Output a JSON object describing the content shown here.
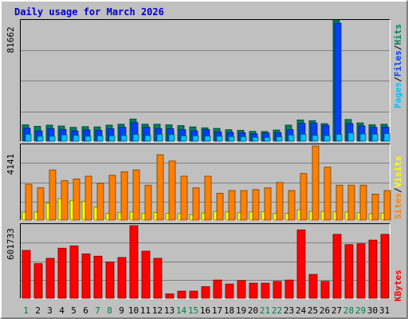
{
  "title": "Daily usage for March 2026",
  "colors": {
    "background": "#c0c0c0",
    "title": "#0000cc",
    "hits": "#00805c",
    "files": "#0040ff",
    "pages": "#00c0ff",
    "visits": "#ffff00",
    "sites": "#ff8000",
    "kbytes": "#ff0000",
    "day_weekday": "#000000",
    "day_weekend": "#008040"
  },
  "legends": {
    "top": [
      {
        "text": "Pages",
        "color": "#00c0ff"
      },
      {
        "text": "/",
        "color": "#000000"
      },
      {
        "text": "Files",
        "color": "#0040ff"
      },
      {
        "text": "/",
        "color": "#000000"
      },
      {
        "text": "Hits",
        "color": "#00805c"
      }
    ],
    "middle": [
      {
        "text": "Sites",
        "color": "#ff8000"
      },
      {
        "text": "/",
        "color": "#000000"
      },
      {
        "text": "Visits",
        "color": "#ffff00"
      }
    ],
    "bottom": [
      {
        "text": "KBytes",
        "color": "#ff0000"
      }
    ]
  },
  "chart_data": [
    {
      "type": "bar",
      "panel": "hits-files-pages",
      "ymax_label": "81662",
      "ylim": [
        0,
        81662
      ],
      "grid": true,
      "x": [
        1,
        2,
        3,
        4,
        5,
        6,
        7,
        8,
        9,
        10,
        11,
        12,
        13,
        14,
        15,
        16,
        17,
        18,
        19,
        20,
        21,
        22,
        23,
        24,
        25,
        26,
        27,
        28,
        29,
        30,
        31
      ],
      "series": [
        {
          "name": "Hits",
          "values": [
            11000,
            10000,
            10800,
            10200,
            9300,
            9800,
            9600,
            10800,
            11400,
            14900,
            11400,
            11400,
            11000,
            10500,
            9600,
            9000,
            8600,
            7700,
            7300,
            6600,
            6500,
            7500,
            10800,
            14300,
            13800,
            11800,
            81662,
            14600,
            12300,
            11100,
            11400
          ]
        },
        {
          "name": "Files",
          "values": [
            8700,
            6900,
            8400,
            7900,
            6900,
            7600,
            7300,
            8400,
            9400,
            12500,
            9400,
            8500,
            8400,
            7700,
            7000,
            7800,
            6300,
            5900,
            5700,
            5000,
            5500,
            5800,
            7800,
            12000,
            12100,
            10700,
            79500,
            11800,
            10300,
            9300,
            9400
          ]
        },
        {
          "name": "Pages",
          "values": [
            4600,
            3300,
            3300,
            4200,
            3900,
            3300,
            3500,
            3600,
            3800,
            4500,
            3800,
            4500,
            4400,
            3600,
            3600,
            3400,
            3300,
            3100,
            3000,
            2600,
            2500,
            2900,
            4100,
            4600,
            3900,
            3800,
            4500,
            5500,
            4800,
            4600,
            5000
          ]
        }
      ]
    },
    {
      "type": "bar",
      "panel": "visits-sites",
      "ymax_label": "4141",
      "ylim": [
        0,
        4141
      ],
      "grid": true,
      "x": [
        1,
        2,
        3,
        4,
        5,
        6,
        7,
        8,
        9,
        10,
        11,
        12,
        13,
        14,
        15,
        16,
        17,
        18,
        19,
        20,
        21,
        22,
        23,
        24,
        25,
        26,
        27,
        28,
        29,
        30,
        31
      ],
      "series": [
        {
          "name": "Visits",
          "values": [
            450,
            450,
            950,
            1200,
            1100,
            1050,
            730,
            380,
            430,
            450,
            380,
            430,
            380,
            360,
            310,
            400,
            480,
            460,
            410,
            460,
            470,
            380,
            380,
            580,
            480,
            480,
            470,
            450,
            410,
            360,
            390
          ]
        },
        {
          "name": "Sites",
          "values": [
            2000,
            1800,
            2800,
            2200,
            2300,
            2450,
            2050,
            2500,
            2700,
            2800,
            1950,
            3650,
            3300,
            2450,
            1800,
            2450,
            1500,
            1650,
            1650,
            1700,
            1800,
            2100,
            1650,
            2600,
            4141,
            2950,
            1950,
            1950,
            1950,
            1450,
            1650
          ]
        }
      ]
    },
    {
      "type": "bar",
      "panel": "kbytes",
      "ymax_label": "601733",
      "ylim": [
        0,
        601733
      ],
      "grid": true,
      "x": [
        1,
        2,
        3,
        4,
        5,
        6,
        7,
        8,
        9,
        10,
        11,
        12,
        13,
        14,
        15,
        16,
        17,
        18,
        19,
        20,
        21,
        22,
        23,
        24,
        25,
        26,
        27,
        28,
        29,
        30,
        31
      ],
      "series": [
        {
          "name": "KBytes",
          "values": [
            397000,
            287000,
            331000,
            415000,
            434000,
            368000,
            349000,
            301000,
            338000,
            601733,
            390000,
            331000,
            36000,
            59000,
            59000,
            96000,
            151000,
            118000,
            147000,
            125000,
            125000,
            140000,
            151000,
            567000,
            198000,
            140000,
            530000,
            445000,
            452000,
            482000,
            530000
          ]
        }
      ]
    }
  ],
  "days": [
    {
      "label": "1",
      "weekend": true
    },
    {
      "label": "2",
      "weekend": false
    },
    {
      "label": "3",
      "weekend": false
    },
    {
      "label": "4",
      "weekend": false
    },
    {
      "label": "5",
      "weekend": false
    },
    {
      "label": "6",
      "weekend": false
    },
    {
      "label": "7",
      "weekend": true
    },
    {
      "label": "8",
      "weekend": true
    },
    {
      "label": "9",
      "weekend": false
    },
    {
      "label": "10",
      "weekend": false
    },
    {
      "label": "11",
      "weekend": false
    },
    {
      "label": "12",
      "weekend": false
    },
    {
      "label": "13",
      "weekend": false
    },
    {
      "label": "14",
      "weekend": true
    },
    {
      "label": "15",
      "weekend": true
    },
    {
      "label": "16",
      "weekend": false
    },
    {
      "label": "17",
      "weekend": false
    },
    {
      "label": "18",
      "weekend": false
    },
    {
      "label": "19",
      "weekend": false
    },
    {
      "label": "20",
      "weekend": false
    },
    {
      "label": "21",
      "weekend": true
    },
    {
      "label": "22",
      "weekend": true
    },
    {
      "label": "23",
      "weekend": false
    },
    {
      "label": "24",
      "weekend": false
    },
    {
      "label": "25",
      "weekend": false
    },
    {
      "label": "26",
      "weekend": false
    },
    {
      "label": "27",
      "weekend": false
    },
    {
      "label": "28",
      "weekend": true
    },
    {
      "label": "29",
      "weekend": true
    },
    {
      "label": "30",
      "weekend": false
    },
    {
      "label": "31",
      "weekend": false
    }
  ]
}
